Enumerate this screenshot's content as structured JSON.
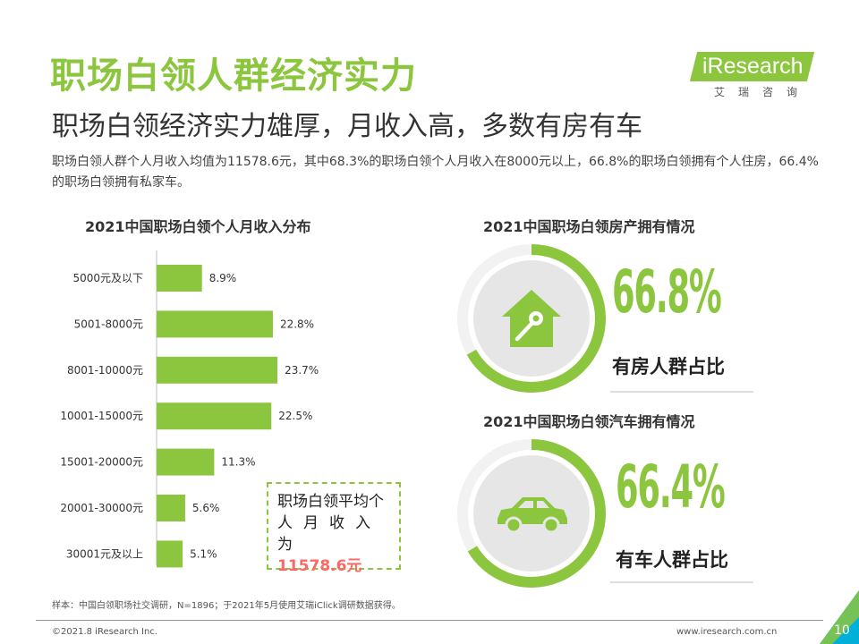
{
  "header": {
    "title": "职场白领人群经济实力",
    "subtitle": "职场白领经济实力雄厚，月收入高，多数有房有车",
    "description": "职场白领人群个人月收入均值为11578.6元，其中68.3%的职场白领个人月收入在8000元以上，66.8%的职场白领拥有个人住房，66.4%的职场白领拥有私家车。"
  },
  "logo": {
    "brand": "iResearch",
    "sub": "艾瑞咨询"
  },
  "colors": {
    "accent": "#8cc63f",
    "ring_track": "#f2f2f2",
    "icon_bg": "#e6e6e6",
    "icon_fg": "#8cc63f",
    "highlight": "#ff6666",
    "corner": "#00b0d8"
  },
  "chart_data": [
    {
      "type": "bar",
      "orientation": "horizontal",
      "title": "2021中国职场白领个人月收入分布",
      "categories": [
        "5000元及以下",
        "5001-8000元",
        "8001-10000元",
        "10001-15000元",
        "15001-20000元",
        "20001-30000元",
        "30001元及以上"
      ],
      "values": [
        8.9,
        22.8,
        23.7,
        22.5,
        11.3,
        5.6,
        5.1
      ],
      "value_labels": [
        "8.9%",
        "22.8%",
        "23.7%",
        "22.5%",
        "11.3%",
        "5.6%",
        "5.1%"
      ],
      "xlim": [
        0,
        30
      ],
      "grid": false,
      "xlabel": "",
      "ylabel": ""
    },
    {
      "type": "pie",
      "title": "2021中国职场白领房产拥有情况",
      "values": [
        66.8
      ],
      "value_label": "66.8%",
      "label": "有房人群占比",
      "icon": "house-key-icon"
    },
    {
      "type": "pie",
      "title": "2021中国职场白领汽车拥有情况",
      "values": [
        66.4
      ],
      "value_label": "66.4%",
      "label": "有车人群占比",
      "icon": "car-icon"
    }
  ],
  "note": {
    "line1": "职场白领平均个",
    "line2": "人月收入为",
    "value": "11578.6元"
  },
  "footer": {
    "source": "样本：中国白领职场社交调研，N=1896；于2021年5月使用艾瑞iClick调研数据获得。",
    "copyright": "©2021.8 iResearch Inc.",
    "website": "www.iresearch.com.cn",
    "page": "10"
  }
}
